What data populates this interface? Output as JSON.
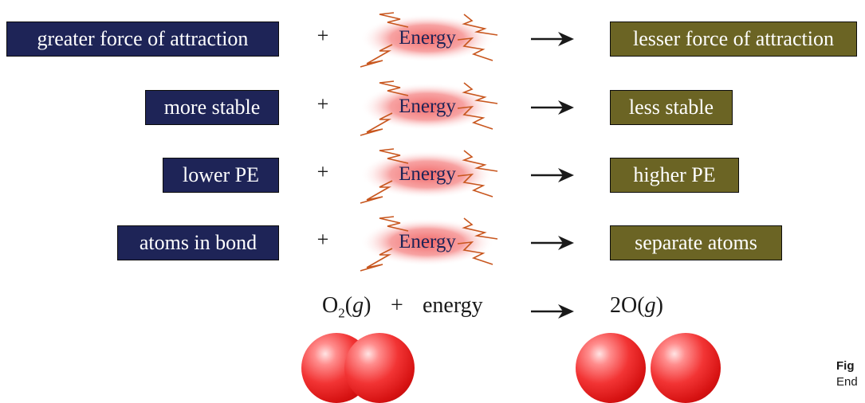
{
  "rows": [
    {
      "left": "greater force of attraction",
      "plus": "+",
      "energy": "Energy",
      "right": "lesser force of attraction"
    },
    {
      "left": "more stable",
      "plus": "+",
      "energy": "Energy",
      "right": "less stable"
    },
    {
      "left": "lower PE",
      "plus": "+",
      "energy": "Energy",
      "right": "higher PE"
    },
    {
      "left": "atoms in bond",
      "plus": "+",
      "energy": "Energy",
      "right": "separate atoms"
    }
  ],
  "equation": {
    "left_symbol": "O",
    "left_subscript": "2",
    "left_state_open": "(",
    "left_state": "g",
    "left_state_close": ")",
    "plus": "+",
    "energy": "energy",
    "right_coefficient": "2O",
    "right_state_open": "(",
    "right_state": "g",
    "right_state_close": ")"
  },
  "caption": {
    "title": "Fig",
    "text": "End"
  },
  "colors": {
    "left_box": "#1e2457",
    "right_box": "#6b6424",
    "energy_glow": "#f06060",
    "lightning": "#c8561e",
    "sphere": "#e01d1d"
  }
}
